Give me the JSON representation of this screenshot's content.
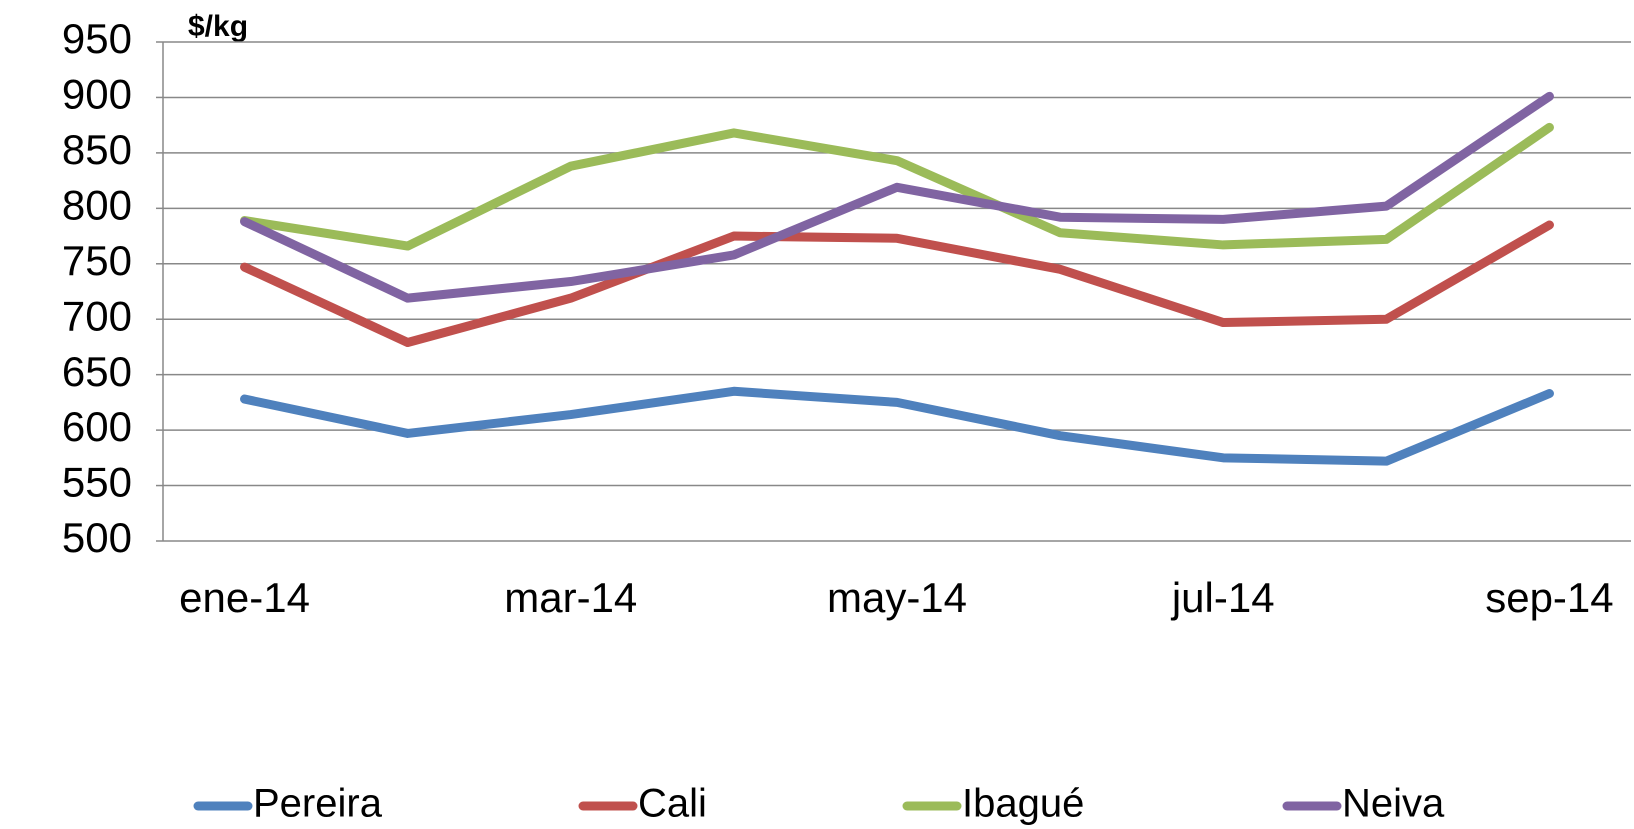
{
  "chart_data": {
    "type": "line",
    "y_label": "$/kg",
    "categories": [
      "ene-14",
      null,
      "mar-14",
      null,
      "may-14",
      null,
      "jul-14",
      null,
      "sep-14"
    ],
    "series": [
      {
        "name": "Pereira",
        "color": "#4f81bd",
        "values": [
          628,
          597,
          614,
          635,
          625,
          595,
          575,
          572,
          633
        ]
      },
      {
        "name": "Cali",
        "color": "#c0504d",
        "values": [
          747,
          679,
          719,
          775,
          773,
          745,
          697,
          700,
          785
        ]
      },
      {
        "name": "Ibagué",
        "color": "#9bbb59",
        "values": [
          789,
          766,
          838,
          868,
          843,
          778,
          767,
          772,
          873
        ]
      },
      {
        "name": "Neiva",
        "color": "#8064a2",
        "values": [
          788,
          719,
          734,
          758,
          819,
          792,
          790,
          802,
          901
        ]
      }
    ],
    "ylim": [
      500,
      950
    ],
    "yticks": [
      500,
      550,
      600,
      650,
      700,
      750,
      800,
      850,
      900,
      950
    ],
    "grid": true
  }
}
